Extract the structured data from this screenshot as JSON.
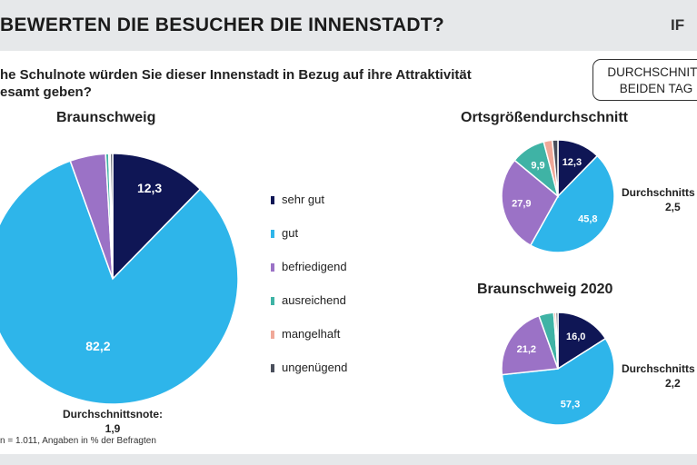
{
  "header": {
    "title": "BEWERTEN DIE BESUCHER DIE INNENSTADT?",
    "logo": "IF"
  },
  "question": {
    "line1": "he Schulnote würden Sie dieser Innenstadt in Bezug auf ihre Attraktivität",
    "line2": "esamt geben?"
  },
  "legend_box": {
    "line1": "DURCHSCHNITT",
    "line2": "BEIDEN TAG"
  },
  "categories": [
    "sehr gut",
    "gut",
    "befriedigend",
    "ausreichend",
    "mangelhaft",
    "ungenügend"
  ],
  "colors": {
    "sehr_gut": "#0f1655",
    "gut": "#2eb5ea",
    "befriedigend": "#9b72c6",
    "ausreichend": "#3fb3a5",
    "mangelhaft": "#f0a898",
    "ungenuegend": "#4a4f5c"
  },
  "charts": {
    "main": {
      "title": "Braunschweig",
      "avg_label": "Durchschnittsnote:",
      "avg_value": "1,9"
    },
    "orts": {
      "title": "Ortsgrößendurchschnitt",
      "avg_label": "Durchschnitts",
      "avg_value": "2,5"
    },
    "bs2020": {
      "title": "Braunschweig 2020",
      "avg_label": "Durchschnitts",
      "avg_value": "2,2"
    }
  },
  "footnote": "n = 1.011, Angaben in % der Befragten",
  "chart_data": [
    {
      "type": "pie",
      "title": "Braunschweig",
      "categories": [
        "sehr gut",
        "gut",
        "befriedigend",
        "ausreichend",
        "mangelhaft",
        "ungenügend"
      ],
      "values": [
        12.3,
        82.2,
        4.6,
        0.4,
        0.2,
        0.3
      ],
      "labels": [
        "12,3",
        "82,2",
        "",
        "",
        "",
        ""
      ]
    },
    {
      "type": "pie",
      "title": "Ortsgrößendurchschnitt",
      "categories": [
        "sehr gut",
        "gut",
        "befriedigend",
        "ausreichend",
        "mangelhaft",
        "ungenügend"
      ],
      "values": [
        12.3,
        45.8,
        27.9,
        9.9,
        2.5,
        1.6
      ],
      "labels": [
        "12,3",
        "45,8",
        "27,9",
        "9,9",
        "",
        ""
      ]
    },
    {
      "type": "pie",
      "title": "Braunschweig 2020",
      "categories": [
        "sehr gut",
        "gut",
        "befriedigend",
        "ausreichend",
        "mangelhaft",
        "ungenügend"
      ],
      "values": [
        16.0,
        57.3,
        21.2,
        4.3,
        0.6,
        0.6
      ],
      "labels": [
        "16,0",
        "57,3",
        "21,2",
        "",
        "",
        ""
      ]
    }
  ]
}
